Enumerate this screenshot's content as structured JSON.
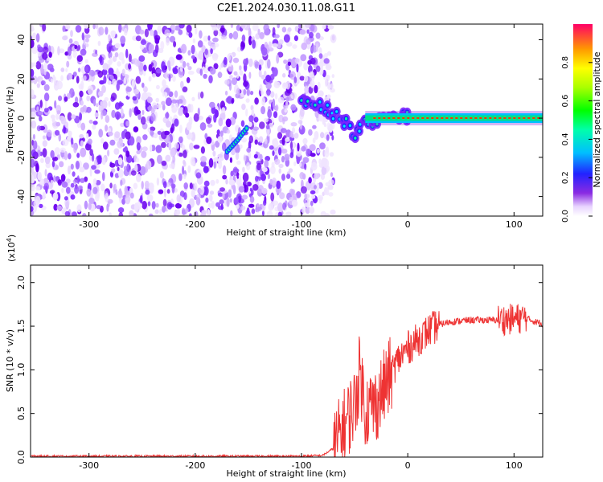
{
  "title": "C2E1.2024.030.11.08.G11",
  "chart_data": [
    {
      "type": "heatmap",
      "xlabel": "Height of straight line (km)",
      "ylabel": "Frequency (Hz)",
      "xlim": [
        -355,
        127
      ],
      "ylim": [
        -50,
        48
      ],
      "xticks": [
        -300,
        -200,
        -100,
        0,
        100
      ],
      "yticks": [
        -40,
        -20,
        0,
        20,
        40
      ],
      "colorbar": {
        "label": "Normalized spectral amplitude",
        "range": [
          0.0,
          1.0
        ],
        "ticks": [
          "0.0",
          "0.2",
          "0.4",
          "0.6",
          "0.8"
        ],
        "tick_values": [
          0.0,
          0.2,
          0.4,
          0.6,
          0.8
        ]
      },
      "features": {
        "noise_region_x": [
          -355,
          -85
        ],
        "carrier_freq_hz": 0,
        "carrier_start_km": -40,
        "dispersion_track": [
          [
            -100,
            10
          ],
          [
            -90,
            8
          ],
          [
            -80,
            5
          ],
          [
            -70,
            3
          ],
          [
            -60,
            -3
          ],
          [
            -50,
            -8
          ],
          [
            -40,
            -2
          ],
          [
            -30,
            -1
          ],
          [
            -20,
            0
          ],
          [
            -5,
            2
          ],
          [
            0,
            1
          ]
        ],
        "streak_track": [
          [
            -170,
            -17
          ],
          [
            -160,
            -11
          ],
          [
            -150,
            -4
          ]
        ]
      }
    },
    {
      "type": "line",
      "xlabel": "Height of straight line (km)",
      "ylabel": "SNR (10 * v/v)",
      "y_exponent_label": "(x10",
      "y_exponent_value": "4",
      "y_exponent_close": ")",
      "xlim": [
        -355,
        127
      ],
      "ylim": [
        0,
        2.2
      ],
      "xticks": [
        -300,
        -200,
        -100,
        0,
        100
      ],
      "yticks": [
        0.0,
        0.5,
        1.0,
        1.5,
        2.0
      ],
      "ytick_labels": [
        "0.0",
        "0.5",
        "1.0",
        "1.5",
        "2.0"
      ],
      "series": [
        {
          "name": "SNR",
          "color": "#ee3333",
          "x": [
            -355,
            -300,
            -250,
            -200,
            -150,
            -100,
            -80,
            -70,
            -60,
            -50,
            -45,
            -40,
            -30,
            -20,
            -10,
            0,
            10,
            20,
            30,
            40,
            50,
            60,
            80,
            100,
            110,
            120,
            127
          ],
          "y": [
            0.01,
            0.01,
            0.01,
            0.01,
            0.01,
            0.01,
            0.02,
            0.1,
            0.35,
            0.6,
            1.0,
            0.55,
            0.6,
            0.85,
            1.1,
            1.25,
            1.35,
            1.45,
            1.52,
            1.55,
            1.56,
            1.57,
            1.57,
            1.58,
            1.6,
            1.55,
            1.53
          ]
        }
      ]
    }
  ]
}
